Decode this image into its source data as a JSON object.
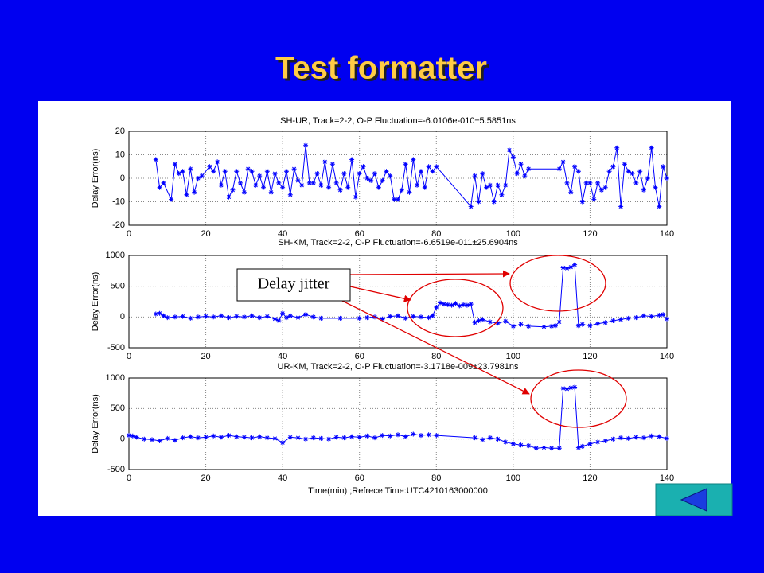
{
  "title": "Test formatter",
  "annotation": "Delay jitter",
  "chart_data": [
    {
      "type": "line",
      "title": "SH-UR, Track=2-2, O-P Fluctuation=-6.0106e-010±5.5851ns",
      "ylabel": "Delay Error(ns)",
      "color": "#0000ff",
      "grid": true,
      "xlim": [
        0,
        140
      ],
      "xticks": [
        0,
        20,
        40,
        60,
        80,
        100,
        120,
        140
      ],
      "ylim": [
        -20,
        20
      ],
      "yticks": [
        -20,
        -10,
        0,
        10,
        20
      ],
      "x": [
        7,
        8,
        9,
        11,
        12,
        13,
        14,
        15,
        16,
        17,
        18,
        19,
        21,
        22,
        23,
        24,
        25,
        26,
        27,
        28,
        29,
        30,
        31,
        32,
        33,
        34,
        35,
        36,
        37,
        38,
        39,
        40,
        41,
        42,
        43,
        44,
        45,
        46,
        47,
        48,
        49,
        50,
        51,
        52,
        53,
        54,
        55,
        56,
        57,
        58,
        59,
        60,
        61,
        62,
        63,
        64,
        65,
        66,
        67,
        68,
        69,
        70,
        71,
        72,
        73,
        74,
        75,
        76,
        77,
        78,
        79,
        80,
        89,
        90,
        91,
        92,
        93,
        94,
        95,
        96,
        97,
        98,
        99,
        100,
        101,
        102,
        103,
        104,
        112,
        113,
        114,
        115,
        116,
        117,
        118,
        119,
        120,
        121,
        122,
        123,
        124,
        125,
        126,
        127,
        128,
        129,
        130,
        131,
        132,
        133,
        134,
        135,
        136,
        137,
        138,
        139,
        140
      ],
      "values": [
        8,
        -4,
        -2,
        -9,
        6,
        2,
        3,
        -7,
        4,
        -6,
        0,
        1,
        5,
        3,
        7,
        -3,
        3,
        -8,
        -5,
        3,
        -2,
        -6,
        4,
        3,
        -3,
        1,
        -4,
        3,
        -6,
        2,
        -2,
        -4,
        3,
        -7,
        4,
        -1,
        -3,
        14,
        -2,
        -2,
        2,
        -3,
        7,
        -4,
        6,
        -2,
        -5,
        2,
        -4,
        8,
        -8,
        2,
        5,
        0,
        -1,
        2,
        -4,
        -1,
        3,
        1,
        -9,
        -9,
        -5,
        6,
        -6,
        8,
        -3,
        3,
        -4,
        5,
        3,
        5,
        -12,
        1,
        -10,
        2,
        -4,
        -3,
        -10,
        -3,
        -7,
        -3,
        12,
        9,
        2,
        6,
        1,
        4,
        4,
        7,
        -2,
        -6,
        5,
        3,
        -10,
        -2,
        -2,
        -9,
        -2,
        -5,
        -4,
        3,
        5,
        13,
        -12,
        6,
        3,
        2,
        -2,
        3,
        -5,
        0,
        13,
        -4,
        -12,
        5,
        0
      ]
    },
    {
      "type": "line",
      "title": "SH-KM, Track=2-2, O-P Fluctuation=-6.6519e-011±25.6904ns",
      "ylabel": "Delay Error(ns)",
      "color": "#0000ff",
      "grid": true,
      "xlim": [
        0,
        140
      ],
      "xticks": [
        0,
        20,
        40,
        60,
        80,
        100,
        120,
        140
      ],
      "ylim": [
        -500,
        1000
      ],
      "yticks": [
        -500,
        0,
        500,
        1000
      ],
      "x": [
        7,
        8,
        9,
        10,
        12,
        14,
        16,
        18,
        20,
        22,
        24,
        26,
        28,
        30,
        32,
        34,
        36,
        38,
        39,
        40,
        41,
        42,
        44,
        46,
        48,
        50,
        55,
        60,
        62,
        64,
        66,
        68,
        70,
        72,
        74,
        76,
        78,
        79,
        80,
        81,
        82,
        83,
        84,
        85,
        86,
        87,
        88,
        89,
        90,
        91,
        92,
        94,
        96,
        98,
        100,
        102,
        104,
        108,
        110,
        111,
        112,
        113,
        114,
        115,
        116,
        117,
        118,
        120,
        122,
        124,
        126,
        128,
        130,
        132,
        134,
        136,
        138,
        139,
        140
      ],
      "values": [
        50,
        60,
        20,
        -10,
        0,
        10,
        -20,
        0,
        10,
        0,
        20,
        -10,
        10,
        0,
        20,
        -10,
        10,
        -30,
        -60,
        60,
        -10,
        20,
        -10,
        40,
        0,
        -20,
        -20,
        -20,
        -10,
        0,
        -30,
        10,
        20,
        -20,
        10,
        0,
        -10,
        20,
        160,
        230,
        210,
        200,
        190,
        220,
        180,
        200,
        190,
        210,
        -90,
        -60,
        -40,
        -80,
        -100,
        -70,
        -150,
        -120,
        -150,
        -160,
        -150,
        -140,
        -80,
        800,
        790,
        810,
        850,
        -140,
        -120,
        -140,
        -110,
        -90,
        -60,
        -40,
        -20,
        -10,
        20,
        10,
        30,
        40,
        -30
      ]
    },
    {
      "type": "line",
      "title": "UR-KM, Track=2-2, O-P Fluctuation=-3.1718e-009±23.7981ns",
      "ylabel": "Delay Error(ns)",
      "xlabel": "Time(min) ;Refrece Time:UTC4210163000000",
      "color": "#0000ff",
      "grid": true,
      "xlim": [
        0,
        140
      ],
      "xticks": [
        0,
        20,
        40,
        60,
        80,
        100,
        120,
        140
      ],
      "ylim": [
        -500,
        1000
      ],
      "yticks": [
        -500,
        0,
        500,
        1000
      ],
      "x": [
        0,
        1,
        2,
        4,
        6,
        8,
        10,
        12,
        14,
        16,
        18,
        20,
        22,
        24,
        26,
        28,
        30,
        32,
        34,
        36,
        38,
        40,
        42,
        44,
        46,
        48,
        50,
        52,
        54,
        56,
        58,
        60,
        62,
        64,
        66,
        68,
        70,
        72,
        74,
        76,
        78,
        80,
        90,
        92,
        94,
        96,
        98,
        100,
        102,
        104,
        106,
        108,
        110,
        112,
        113,
        114,
        115,
        116,
        117,
        118,
        120,
        122,
        124,
        126,
        128,
        130,
        132,
        134,
        136,
        138,
        140
      ],
      "values": [
        60,
        50,
        30,
        0,
        -10,
        -30,
        10,
        -20,
        20,
        40,
        20,
        30,
        50,
        30,
        60,
        40,
        30,
        20,
        40,
        20,
        10,
        -60,
        30,
        20,
        0,
        20,
        10,
        0,
        30,
        20,
        40,
        30,
        50,
        20,
        60,
        50,
        70,
        40,
        80,
        60,
        70,
        60,
        20,
        -10,
        20,
        0,
        -50,
        -80,
        -100,
        -110,
        -150,
        -140,
        -150,
        -150,
        830,
        820,
        840,
        850,
        -140,
        -120,
        -80,
        -50,
        -30,
        0,
        20,
        10,
        30,
        20,
        50,
        40,
        10
      ]
    }
  ]
}
